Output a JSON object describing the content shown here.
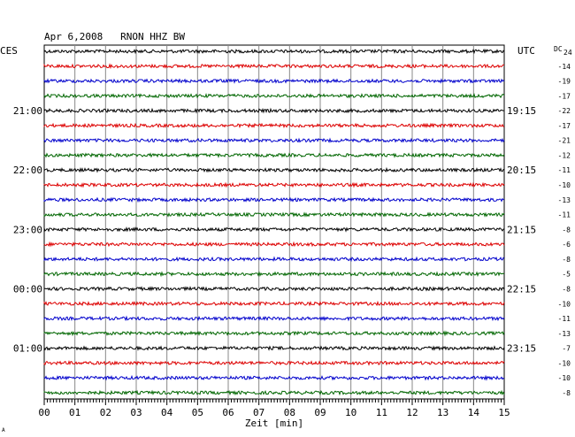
{
  "chart_data": {
    "type": "line",
    "title": "Apr 6,2008   RNON HHZ BW",
    "left_tz_label": "CES",
    "right_tz_label": "UTC",
    "dc_label": "DC",
    "dc_header_value": "24",
    "xlabel": "Zeit [min]",
    "xlim": [
      0,
      15
    ],
    "x_ticks": [
      "00",
      "01",
      "02",
      "03",
      "04",
      "05",
      "06",
      "07",
      "08",
      "09",
      "10",
      "11",
      "12",
      "13",
      "14",
      "15"
    ],
    "trace_colors": [
      "#000000",
      "#dd0000",
      "#0000cc",
      "#006600"
    ],
    "left_hour_labels": [
      {
        "trace": 4,
        "label": "21:00"
      },
      {
        "trace": 8,
        "label": "22:00"
      },
      {
        "trace": 12,
        "label": "23:00"
      },
      {
        "trace": 16,
        "label": "00:00"
      },
      {
        "trace": 20,
        "label": "01:00"
      }
    ],
    "right_hour_labels": [
      {
        "trace": 4,
        "label": "19:15"
      },
      {
        "trace": 8,
        "label": "20:15"
      },
      {
        "trace": 12,
        "label": "21:15"
      },
      {
        "trace": 16,
        "label": "22:15"
      },
      {
        "trace": 20,
        "label": "23:15"
      }
    ],
    "dc_offsets": [
      "-14",
      "-19",
      "-17",
      "-22",
      "-17",
      "-21",
      "-12",
      "-11",
      "-10",
      "-13",
      "-11",
      "-8",
      "-6",
      "-8",
      "-5",
      "-8",
      "-10",
      "-11",
      "-13",
      "-7",
      "-10",
      "-10",
      "-8"
    ],
    "footer_mark": "A"
  }
}
